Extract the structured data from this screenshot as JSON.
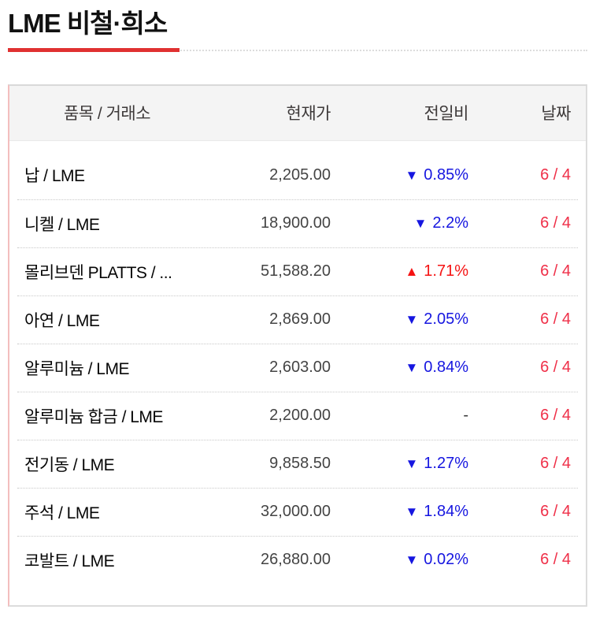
{
  "page": {
    "title": "LME 비철·희소"
  },
  "colors": {
    "accent": "#e03131",
    "up": "#f51313",
    "down": "#1616e0",
    "flat": "#3a3a3a",
    "date": "#ef2f48"
  },
  "table": {
    "headers": {
      "item": "품목 / 거래소",
      "price": "현재가",
      "change": "전일비",
      "date": "날짜"
    },
    "rows": [
      {
        "name": "납 / LME",
        "price": "2,205.00",
        "arrow": "▼",
        "change": "0.85%",
        "direction": "down",
        "date": "6 / 4"
      },
      {
        "name": "니켈 / LME",
        "price": "18,900.00",
        "arrow": "▼",
        "change": "2.2%",
        "direction": "down",
        "date": "6 / 4"
      },
      {
        "name": "몰리브덴 PLATTS / ...",
        "price": "51,588.20",
        "arrow": "▲",
        "change": "1.71%",
        "direction": "up",
        "date": "6 / 4"
      },
      {
        "name": "아연 / LME",
        "price": "2,869.00",
        "arrow": "▼",
        "change": "2.05%",
        "direction": "down",
        "date": "6 / 4"
      },
      {
        "name": "알루미늄 / LME",
        "price": "2,603.00",
        "arrow": "▼",
        "change": "0.84%",
        "direction": "down",
        "date": "6 / 4"
      },
      {
        "name": "알루미늄 합금 / LME",
        "price": "2,200.00",
        "arrow": "",
        "change": "-",
        "direction": "flat",
        "date": "6 / 4"
      },
      {
        "name": "전기동 / LME",
        "price": "9,858.50",
        "arrow": "▼",
        "change": "1.27%",
        "direction": "down",
        "date": "6 / 4"
      },
      {
        "name": "주석 / LME",
        "price": "32,000.00",
        "arrow": "▼",
        "change": "1.84%",
        "direction": "down",
        "date": "6 / 4"
      },
      {
        "name": "코발트 / LME",
        "price": "26,880.00",
        "arrow": "▼",
        "change": "0.02%",
        "direction": "down",
        "date": "6 / 4"
      }
    ]
  }
}
